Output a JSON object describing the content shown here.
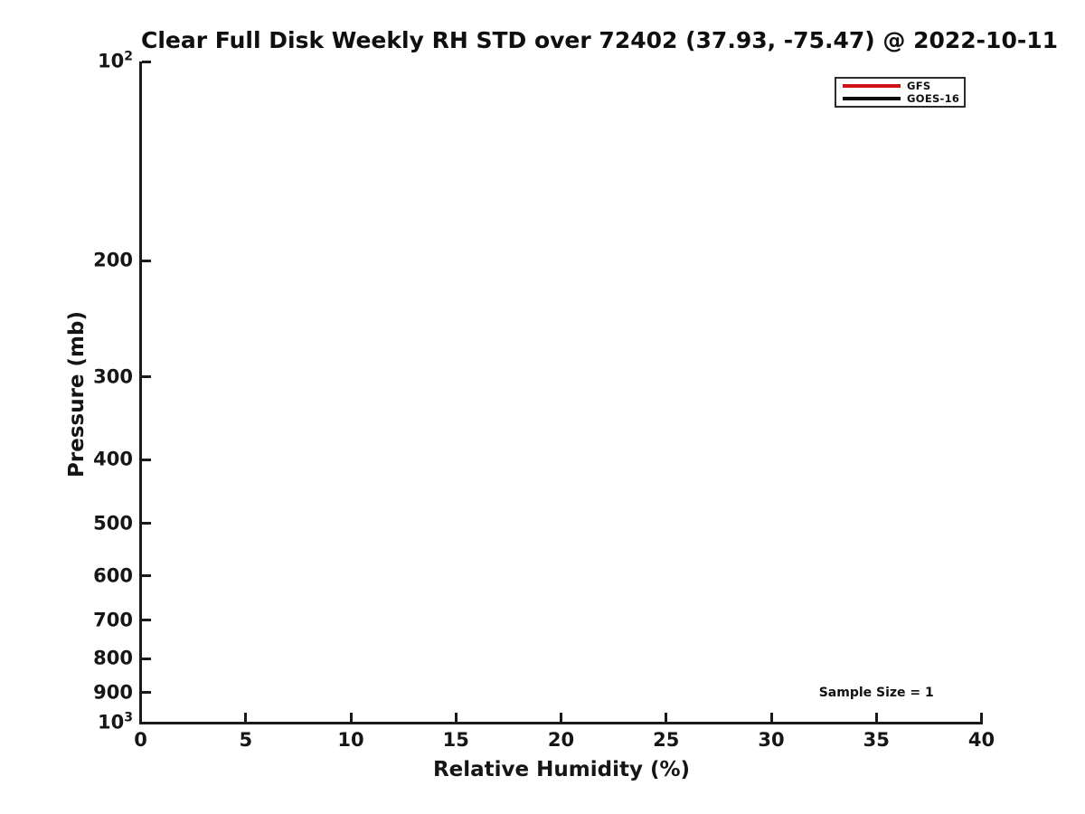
{
  "legend": {
    "position": "top-right",
    "entries": [
      {
        "label": "GFS",
        "color": "#d01217"
      },
      {
        "label": "GOES-16",
        "color": "#0a0a0a"
      }
    ]
  },
  "chart_data": {
    "type": "line",
    "title": "Clear Full Disk Weekly RH STD over 72402 (37.93, -75.47) @ 2022-10-11",
    "xlabel": "Relative Humidity (%)",
    "ylabel": "Pressure (mb)",
    "xlim": [
      0,
      40
    ],
    "ylim": [
      100,
      1000
    ],
    "x_scale": "linear",
    "y_scale": "log",
    "y_axis_inverted": true,
    "grid": false,
    "x_ticks": [
      {
        "value": 0,
        "label": "0"
      },
      {
        "value": 5,
        "label": "5"
      },
      {
        "value": 10,
        "label": "10"
      },
      {
        "value": 15,
        "label": "15"
      },
      {
        "value": 20,
        "label": "20"
      },
      {
        "value": 25,
        "label": "25"
      },
      {
        "value": 30,
        "label": "30"
      },
      {
        "value": 35,
        "label": "35"
      },
      {
        "value": 40,
        "label": "40"
      }
    ],
    "y_ticks": [
      {
        "value": 100,
        "base": "10",
        "exp": "2"
      },
      {
        "value": 200,
        "label": "200"
      },
      {
        "value": 300,
        "label": "300"
      },
      {
        "value": 400,
        "label": "400"
      },
      {
        "value": 500,
        "label": "500"
      },
      {
        "value": 600,
        "label": "600"
      },
      {
        "value": 700,
        "label": "700"
      },
      {
        "value": 800,
        "label": "800"
      },
      {
        "value": 900,
        "label": "900"
      },
      {
        "value": 1000,
        "base": "10",
        "exp": "3"
      }
    ],
    "series": [
      {
        "name": "GFS",
        "color": "#d01217",
        "x": [],
        "y": []
      },
      {
        "name": "GOES-16",
        "color": "#0a0a0a",
        "x": [],
        "y": []
      }
    ],
    "annotations": [
      {
        "text": "Sample Size = 1",
        "x": 35,
        "y": 900
      }
    ]
  }
}
